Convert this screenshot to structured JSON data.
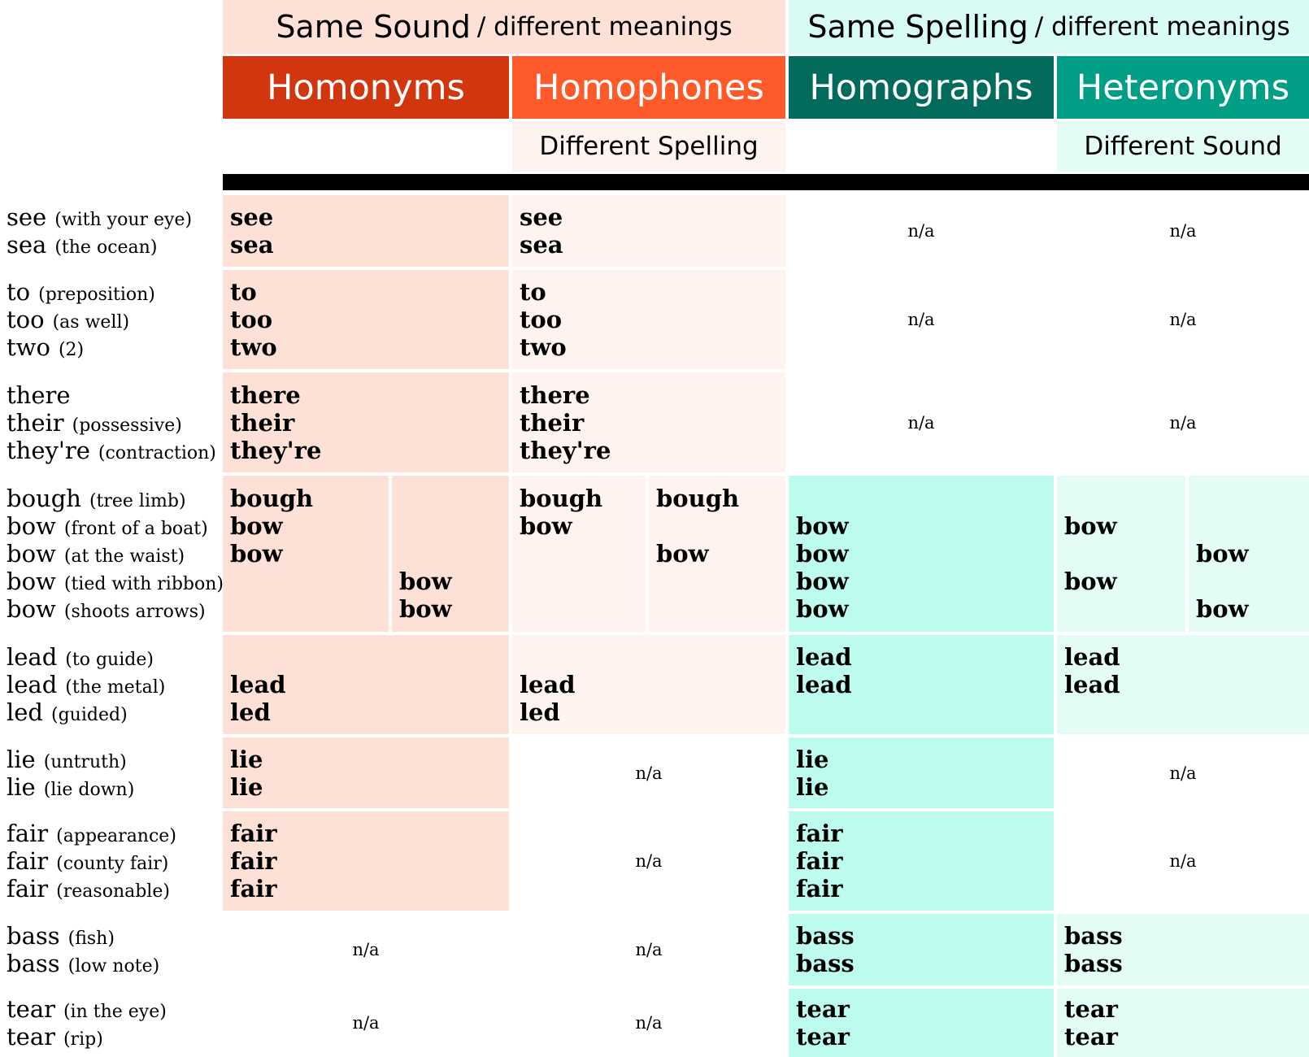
{
  "colors": {
    "homonyms": "#d2360f",
    "homophones": "#ff5a2a",
    "homographs": "#036b5c",
    "heteronyms": "#009e84",
    "pink": "#fde0d6",
    "pale_pink": "#fff3ef",
    "mint": "#bcfbee",
    "pale_mint": "#e3fcf6"
  },
  "header": {
    "same_sound": {
      "big": "Same Sound",
      "small": "/ different meanings"
    },
    "same_spelling": {
      "big": "Same Spelling",
      "small": "/ different meanings"
    },
    "categories": [
      "Homonyms",
      "Homophones",
      "Homographs",
      "Heteronyms"
    ],
    "different_spelling": "Different Spelling",
    "different_sound": "Different Sound"
  },
  "na": "n/a",
  "rows": [
    {
      "labels": [
        {
          "word": "see",
          "meaning": "(with your eye)"
        },
        {
          "word": "sea",
          "meaning": "(the ocean)"
        }
      ],
      "homonyms": [
        "see",
        "sea"
      ],
      "homophones": [
        "see",
        "sea"
      ],
      "homographs": "n/a",
      "heteronyms": "n/a"
    },
    {
      "labels": [
        {
          "word": "to",
          "meaning": "(preposition)"
        },
        {
          "word": "too",
          "meaning": "(as well)"
        },
        {
          "word": "two",
          "meaning": "(2)"
        }
      ],
      "homonyms": [
        "to",
        "too",
        "two"
      ],
      "homophones": [
        "to",
        "too",
        "two"
      ],
      "homographs": "n/a",
      "heteronyms": "n/a"
    },
    {
      "labels": [
        {
          "word": "there",
          "meaning": ""
        },
        {
          "word": "their",
          "meaning": "(possessive)"
        },
        {
          "word": "they're",
          "meaning": "(contraction)"
        }
      ],
      "homonyms": [
        "there",
        "their",
        "they're"
      ],
      "homophones": [
        "there",
        "their",
        "they're"
      ],
      "homographs": "n/a",
      "heteronyms": "n/a"
    },
    {
      "labels": [
        {
          "word": "bough",
          "meaning": "(tree limb)"
        },
        {
          "word": "bow",
          "meaning": "(front of a boat)"
        },
        {
          "word": "bow",
          "meaning": "(at the waist)"
        },
        {
          "word": "bow",
          "meaning": "(tied with ribbon)"
        },
        {
          "word": "bow",
          "meaning": "(shoots arrows)"
        }
      ],
      "homonyms_a": [
        "bough",
        "bow",
        "bow",
        "",
        ""
      ],
      "homonyms_b": [
        "",
        "",
        "",
        "bow",
        "bow"
      ],
      "homophones_a": [
        "bough",
        "bow",
        "",
        "",
        ""
      ],
      "homophones_b": [
        "bough",
        "",
        "bow",
        "",
        ""
      ],
      "homographs": [
        "",
        "bow",
        "bow",
        "bow",
        "bow"
      ],
      "heteronyms_a": [
        "",
        "bow",
        "",
        "bow",
        ""
      ],
      "heteronyms_b": [
        "",
        "",
        "bow",
        "",
        "bow"
      ]
    },
    {
      "labels": [
        {
          "word": "lead",
          "meaning": "(to guide)"
        },
        {
          "word": "lead",
          "meaning": "(the metal)"
        },
        {
          "word": "led",
          "meaning": "(guided)"
        }
      ],
      "homonyms": [
        "",
        "lead",
        "led"
      ],
      "homophones": [
        "",
        "lead",
        "led"
      ],
      "homographs": [
        "lead",
        "lead",
        ""
      ],
      "heteronyms": [
        "lead",
        "lead",
        ""
      ]
    },
    {
      "labels": [
        {
          "word": "lie",
          "meaning": "(untruth)"
        },
        {
          "word": "lie",
          "meaning": "(lie down)"
        }
      ],
      "homonyms": [
        "lie",
        "lie"
      ],
      "homophones": "n/a",
      "homographs": [
        "lie",
        "lie"
      ],
      "heteronyms": "n/a"
    },
    {
      "labels": [
        {
          "word": "fair",
          "meaning": "(appearance)"
        },
        {
          "word": "fair",
          "meaning": "(county fair)"
        },
        {
          "word": "fair",
          "meaning": "(reasonable)"
        }
      ],
      "homonyms": [
        "fair",
        "fair",
        "fair"
      ],
      "homophones": "n/a",
      "homographs": [
        "fair",
        "fair",
        "fair"
      ],
      "heteronyms": "n/a"
    },
    {
      "labels": [
        {
          "word": "bass",
          "meaning": "(fish)"
        },
        {
          "word": "bass",
          "meaning": "(low note)"
        }
      ],
      "homonyms": "n/a",
      "homophones": "n/a",
      "homographs": [
        "bass",
        "bass"
      ],
      "heteronyms": [
        "bass",
        "bass"
      ]
    },
    {
      "labels": [
        {
          "word": "tear",
          "meaning": "(in the eye)"
        },
        {
          "word": "tear",
          "meaning": "(rip)"
        }
      ],
      "homonyms": "n/a",
      "homophones": "n/a",
      "homographs": [
        "tear",
        "tear"
      ],
      "heteronyms": [
        "tear",
        "tear"
      ]
    }
  ]
}
